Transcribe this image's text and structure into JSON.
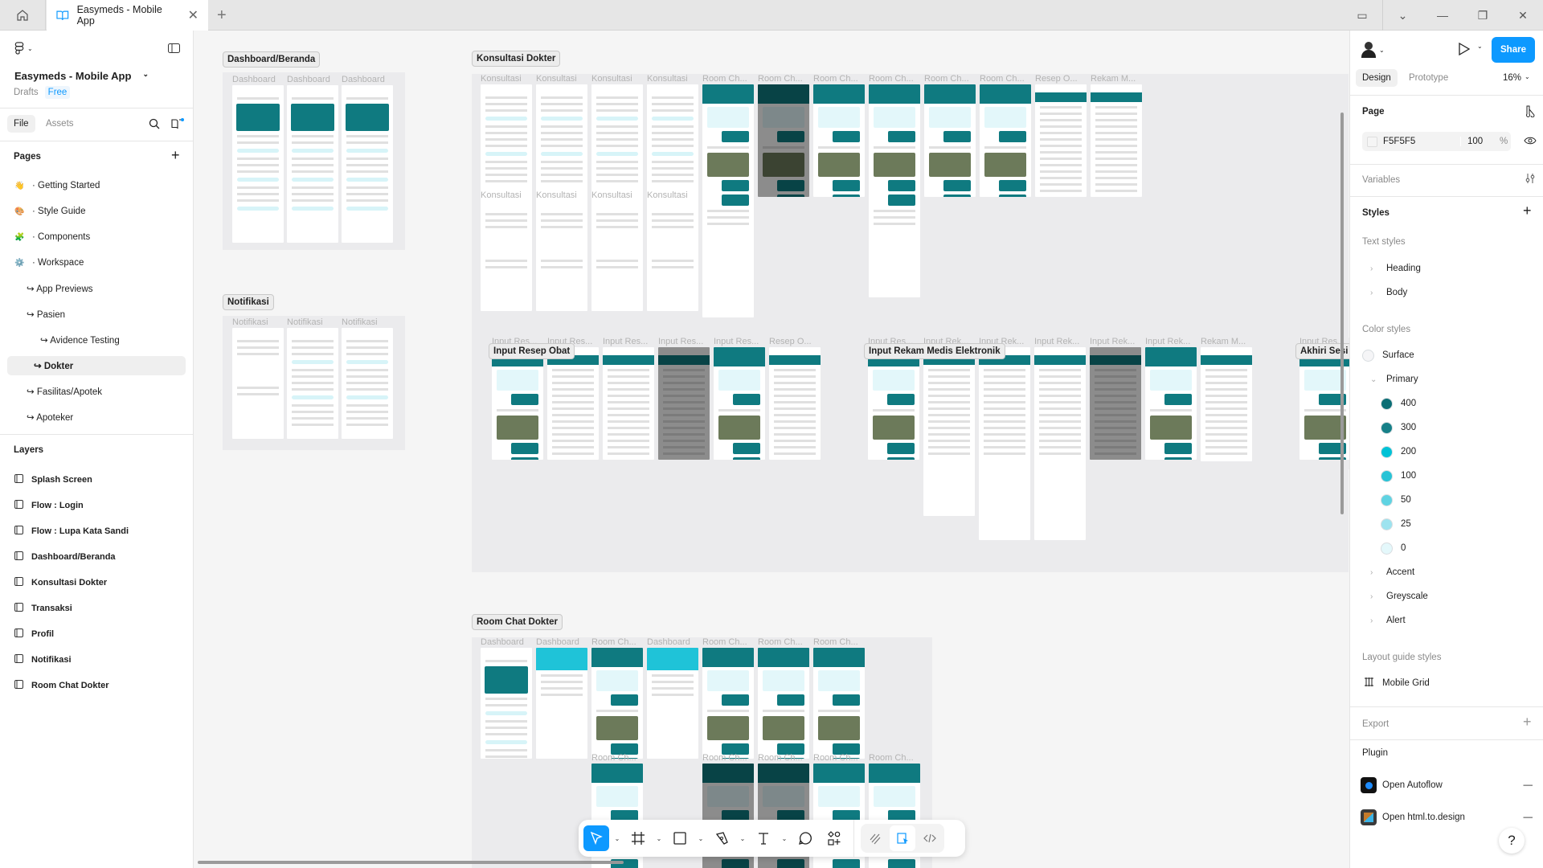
{
  "tabs": {
    "active_title": "Easymeds - Mobile App"
  },
  "left": {
    "file_name": "Easymeds - Mobile App",
    "location": "Drafts",
    "plan_badge": "Free",
    "tab_file": "File",
    "tab_assets": "Assets",
    "pages_title": "Pages",
    "pages": [
      {
        "label": "· Getting Started",
        "emoji": "👋",
        "level": 0
      },
      {
        "label": "· Style Guide",
        "emoji": "🎨",
        "level": 0
      },
      {
        "label": "· Components",
        "emoji": "🧩",
        "level": 0
      },
      {
        "label": "· Workspace",
        "emoji": "⚙️",
        "level": 0
      },
      {
        "label": "↪ App Previews",
        "level": 1
      },
      {
        "label": "↪ Pasien",
        "level": 1
      },
      {
        "label": "↪ Avidence Testing",
        "level": 2
      },
      {
        "label": "↪ Dokter",
        "level": 1,
        "selected": true
      },
      {
        "label": "↪ Fasilitas/Apotek",
        "level": 1
      },
      {
        "label": "↪ Apoteker",
        "level": 1
      }
    ],
    "layers_title": "Layers",
    "layers": [
      "Splash Screen",
      "Flow : Login",
      "Flow : Lupa Kata Sandi",
      "Dashboard/Beranda",
      "Konsultasi Dokter",
      "Transaksi",
      "Profil",
      "Notifikasi",
      "Room Chat Dokter"
    ]
  },
  "right": {
    "share": "Share",
    "tab_design": "Design",
    "tab_prototype": "Prototype",
    "zoom": "16%",
    "page_title": "Page",
    "page_color": "F5F5F5",
    "page_opacity": "100",
    "percent": "%",
    "variables": "Variables",
    "styles": "Styles",
    "text_styles": "Text styles",
    "text_style_groups": [
      "Heading",
      "Body"
    ],
    "color_styles": "Color styles",
    "surface": {
      "label": "Surface",
      "color": "#f5f5f7"
    },
    "primary_label": "Primary",
    "primary": [
      {
        "label": "400",
        "color": "#0b6e75"
      },
      {
        "label": "300",
        "color": "#168088"
      },
      {
        "label": "200",
        "color": "#00c2d6"
      },
      {
        "label": "100",
        "color": "#27c3d6"
      },
      {
        "label": "50",
        "color": "#5fd3e2"
      },
      {
        "label": "25",
        "color": "#9de3ef"
      },
      {
        "label": "0",
        "color": "#e4f8fb"
      }
    ],
    "color_groups": [
      "Accent",
      "Greyscale",
      "Alert"
    ],
    "layout_guides": "Layout guide styles",
    "grid": "Mobile Grid",
    "export": "Export",
    "plugin": "Plugin",
    "plugins": [
      "Open Autoflow",
      "Open html.to.design"
    ],
    "help": "?"
  },
  "canvas": {
    "sections": [
      {
        "title": "Dashboard/Beranda",
        "rows": [
          {
            "labels": [
              "Dashboard",
              "Dashboard",
              "Dashboard"
            ],
            "kinds": [
              "dash",
              "dash",
              "dash"
            ]
          }
        ]
      },
      {
        "title": "Notifikasi",
        "rows": [
          {
            "labels": [
              "Notifikasi",
              "Notifikasi",
              "Notifikasi"
            ],
            "kinds": [
              "empty",
              "list",
              "list"
            ]
          }
        ]
      },
      {
        "title": "Konsultasi Dokter",
        "rows": [
          {
            "labels": [
              "Konsultasi",
              "Konsultasi",
              "Konsultasi",
              "Konsultasi",
              "Room Ch...",
              "Room Ch...",
              "Room Ch...",
              "Room Ch...",
              "Room Ch...",
              "Room Ch...",
              "Resep O...",
              "Rekam M..."
            ],
            "kinds": [
              "list",
              "list",
              "list",
              "list",
              "chat",
              "chatdark",
              "chat",
              "chat",
              "chat",
              "chat",
              "form",
              "form"
            ]
          },
          {
            "labels": [
              "Konsultasi",
              "Konsultasi",
              "Konsultasi",
              "Konsultasi"
            ],
            "kinds": [
              "empty",
              "empty",
              "empty",
              "empty"
            ]
          }
        ]
      },
      {
        "title": "Input Resep Obat",
        "rows": [
          {
            "labels": [
              "Input Res...",
              "Input Res...",
              "Input Res...",
              "Input Res...",
              "Input Res...",
              "Resep O..."
            ],
            "kinds": [
              "chat",
              "form",
              "form",
              "formdark",
              "chat",
              "form"
            ]
          }
        ]
      },
      {
        "title": "Input Rekam Medis Elektronik",
        "rows": [
          {
            "labels": [
              "Input Res...",
              "Input Rek...",
              "Input Rek...",
              "Input Rek...",
              "Input Rek...",
              "Input Rek...",
              "Rekam M..."
            ],
            "kinds": [
              "chat",
              "form",
              "form",
              "form",
              "formdark",
              "chat",
              "form"
            ]
          }
        ]
      },
      {
        "title": "Akhiri Sesi I",
        "rows": [
          {
            "labels": [
              "Input Res..."
            ],
            "kinds": [
              "chat"
            ]
          }
        ]
      },
      {
        "title": "Room Chat Dokter",
        "rows": [
          {
            "labels": [
              "Dashboard",
              "Dashboard",
              "Room Ch...",
              "Dashboard",
              "Room Ch...",
              "Room Ch...",
              "Room Ch..."
            ],
            "kinds": [
              "dash",
              "search",
              "chat",
              "search",
              "chat",
              "chat",
              "chat"
            ]
          },
          {
            "labels": [
              "Room Ch...",
              "Room Ch...",
              "Room Ch...",
              "Room Ch...",
              "Room Ch..."
            ],
            "kinds": [
              "chat",
              "chatdark",
              "chatdark",
              "chat",
              "chat"
            ]
          }
        ]
      }
    ]
  }
}
